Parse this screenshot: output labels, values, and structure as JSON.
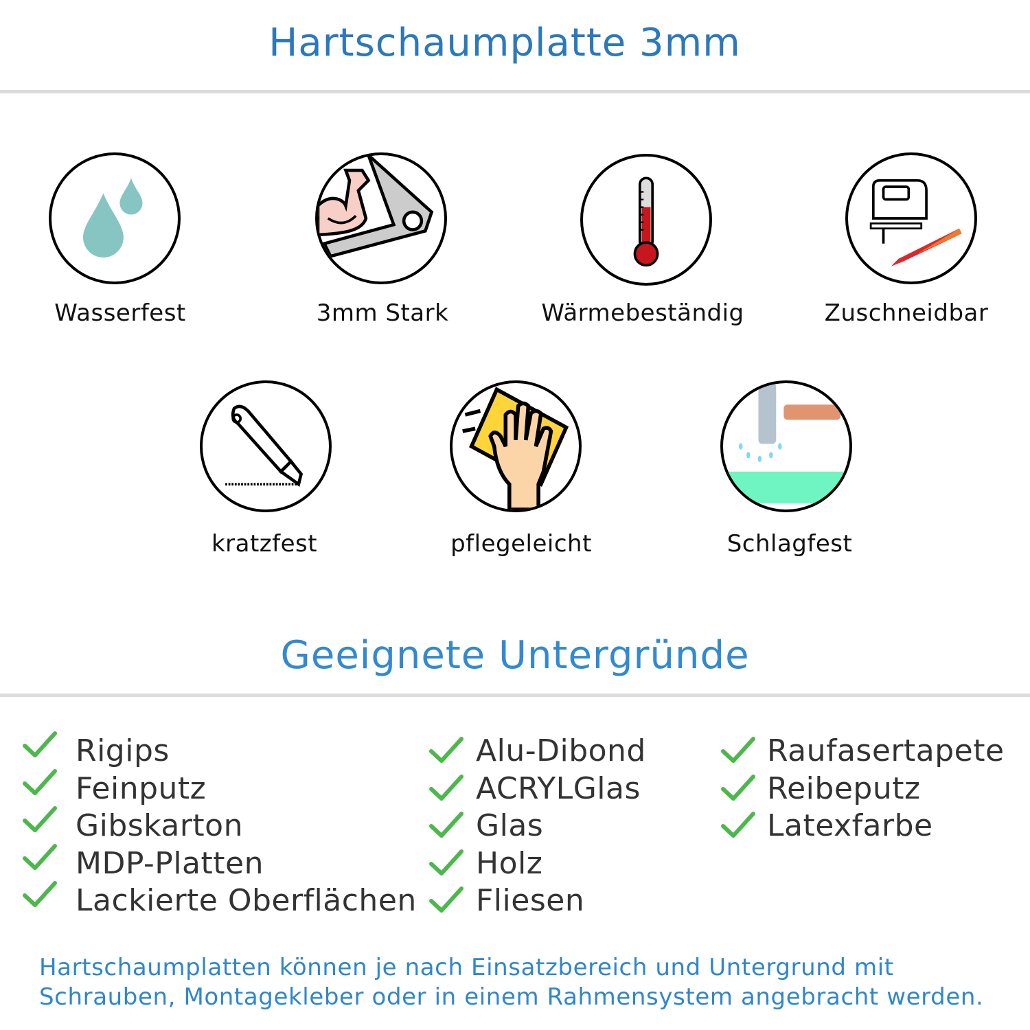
{
  "header": {
    "title": "Hartschaumplatte 3mm"
  },
  "features": [
    {
      "label": "Wasserfest",
      "icon": "water-drops-icon"
    },
    {
      "label": "3mm Stark",
      "icon": "strong-arm-icon"
    },
    {
      "label": "Wärmebeständig",
      "icon": "thermometer-icon"
    },
    {
      "label": "Zuschneidbar",
      "icon": "jigsaw-knife-icon"
    },
    {
      "label": "kratzfest",
      "icon": "cutter-knife-icon"
    },
    {
      "label": "pflegeleicht",
      "icon": "cleaning-hand-icon"
    },
    {
      "label": "Schlagfest",
      "icon": "hammer-icon"
    }
  ],
  "surfaces": {
    "title": "Geeignete Untergründe",
    "columns": [
      [
        "Rigips",
        "Feinputz",
        "Gibskarton",
        "MDP-Platten",
        "Lackierte Oberflächen"
      ],
      [
        "Alu-Dibond",
        "ACRYLGlas",
        "Glas",
        "Holz",
        "Fliesen"
      ],
      [
        "Raufasertapete",
        "Reibeputz",
        "Latexfarbe"
      ]
    ]
  },
  "footer": {
    "line1": "Hartschaumplatten können je nach Einsatzbereich und Untergrund mit",
    "line2": "Schrauben, Montagekleber oder in einem Rahmensystem angebracht werden."
  },
  "colors": {
    "title": "#2b78bd",
    "check": "#4cb84c",
    "footer": "#2f86cf"
  }
}
